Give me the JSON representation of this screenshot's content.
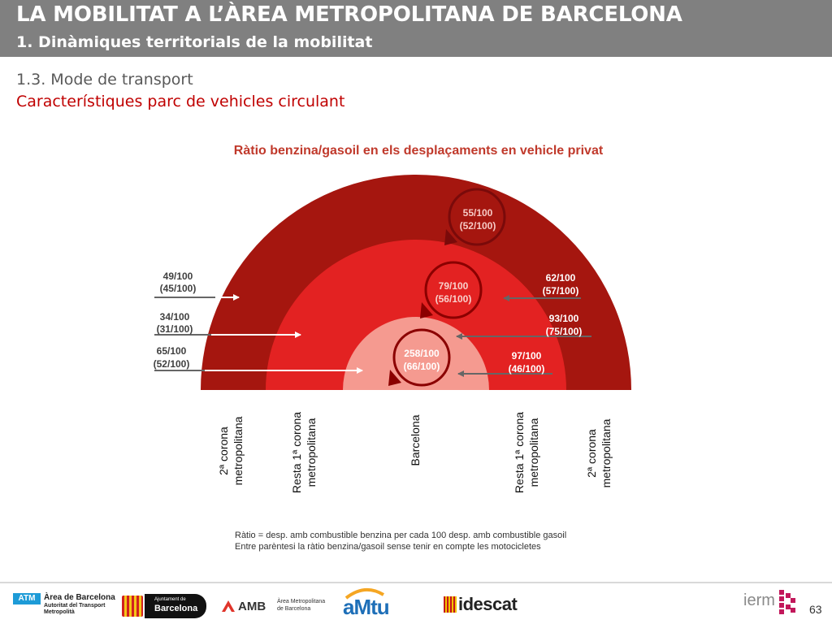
{
  "header": {
    "title": "LA MOBILITAT A L’ÀREA METROPOLITANA DE BARCELONA",
    "subtitle": "1. Dinàmiques territorials de la mobilitat"
  },
  "section": {
    "heading": "1.3. Mode de transport",
    "subheading": "Característiques parc de vehicles circulant"
  },
  "chart_title": "Ràtio benzina/gasoil en els desplaçaments en vehicle privat",
  "ratios": {
    "outer_ring": {
      "main": "55/100",
      "paren": "(52/100)"
    },
    "middle_ring": {
      "main": "79/100",
      "paren": "(56/100)"
    },
    "inner_core": {
      "main": "258/100",
      "paren": "(66/100)"
    },
    "left_1": {
      "main": "49/100",
      "paren": "(45/100)"
    },
    "left_2": {
      "main": "34/100",
      "paren": "(31/100)"
    },
    "left_3": {
      "main": "65/100",
      "paren": "(52/100)"
    },
    "right_1": {
      "main": "62/100",
      "paren": "(57/100)"
    },
    "right_2": {
      "main": "93/100",
      "paren": "(75/100)"
    },
    "right_3": {
      "main": "97/100",
      "paren": "(46/100)"
    }
  },
  "zones": {
    "left_outer": {
      "line1": "2ª corona",
      "line2": "metropolitana"
    },
    "left_middle": {
      "line1": "Resta 1ª corona",
      "line2": "metropolitana"
    },
    "center": {
      "line1": "Barcelona"
    },
    "right_middle": {
      "line1": "Resta 1ª corona",
      "line2": "metropolitana"
    },
    "right_outer": {
      "line1": "2ª corona",
      "line2": "metropolitana"
    }
  },
  "notes": {
    "line1": "Ràtio = desp. amb combustible benzina per cada 100 desp. amb combustible gasoil",
    "line2": "Entre parèntesi la ràtio benzina/gasoil sense tenir en compte les motocicletes"
  },
  "footer": {
    "atm_badge": "ATM",
    "atm_line1": "Àrea de Barcelona",
    "atm_line2": "Autoritat del Transport",
    "atm_line3": "Metropolità",
    "ajuntament_line1": "Ajuntament de",
    "ajuntament_line2": "Barcelona",
    "amb_name": "AMB",
    "amb_line1": "Àrea Metropolitana",
    "amb_line2": "de Barcelona",
    "amtu_name": "aMtu",
    "idescat_name": "idescat",
    "ierm_name": "ierm",
    "page_number": "63"
  },
  "colors": {
    "header_bg": "#808080",
    "outer_ring": "#a5160f",
    "middle_ring": "#e32222",
    "inner_core": "#f59a90",
    "title_red": "#c0392b",
    "section_red": "#c00000"
  }
}
